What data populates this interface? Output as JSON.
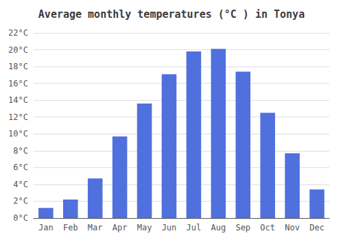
{
  "chart_data": {
    "type": "bar",
    "title": "Average monthly temperatures (°C ) in Tonya",
    "categories": [
      "Jan",
      "Feb",
      "Mar",
      "Apr",
      "May",
      "Jun",
      "Jul",
      "Aug",
      "Sep",
      "Oct",
      "Nov",
      "Dec"
    ],
    "values": [
      1.2,
      2.2,
      4.7,
      9.7,
      13.6,
      17.1,
      19.8,
      20.1,
      17.4,
      12.5,
      7.7,
      3.4
    ],
    "ylim": [
      0,
      22
    ],
    "yticks": [
      {
        "value": 0,
        "label": "0°C"
      },
      {
        "value": 2,
        "label": "2°C"
      },
      {
        "value": 4,
        "label": "4°C"
      },
      {
        "value": 6,
        "label": "6°C"
      },
      {
        "value": 8,
        "label": "8°C"
      },
      {
        "value": 10,
        "label": "10°C"
      },
      {
        "value": 12,
        "label": "12°C"
      },
      {
        "value": 14,
        "label": "14°C"
      },
      {
        "value": 16,
        "label": "16°C"
      },
      {
        "value": 18,
        "label": "18°C"
      },
      {
        "value": 20,
        "label": "20°C"
      },
      {
        "value": 22,
        "label": "22°C"
      }
    ],
    "grid": true
  }
}
